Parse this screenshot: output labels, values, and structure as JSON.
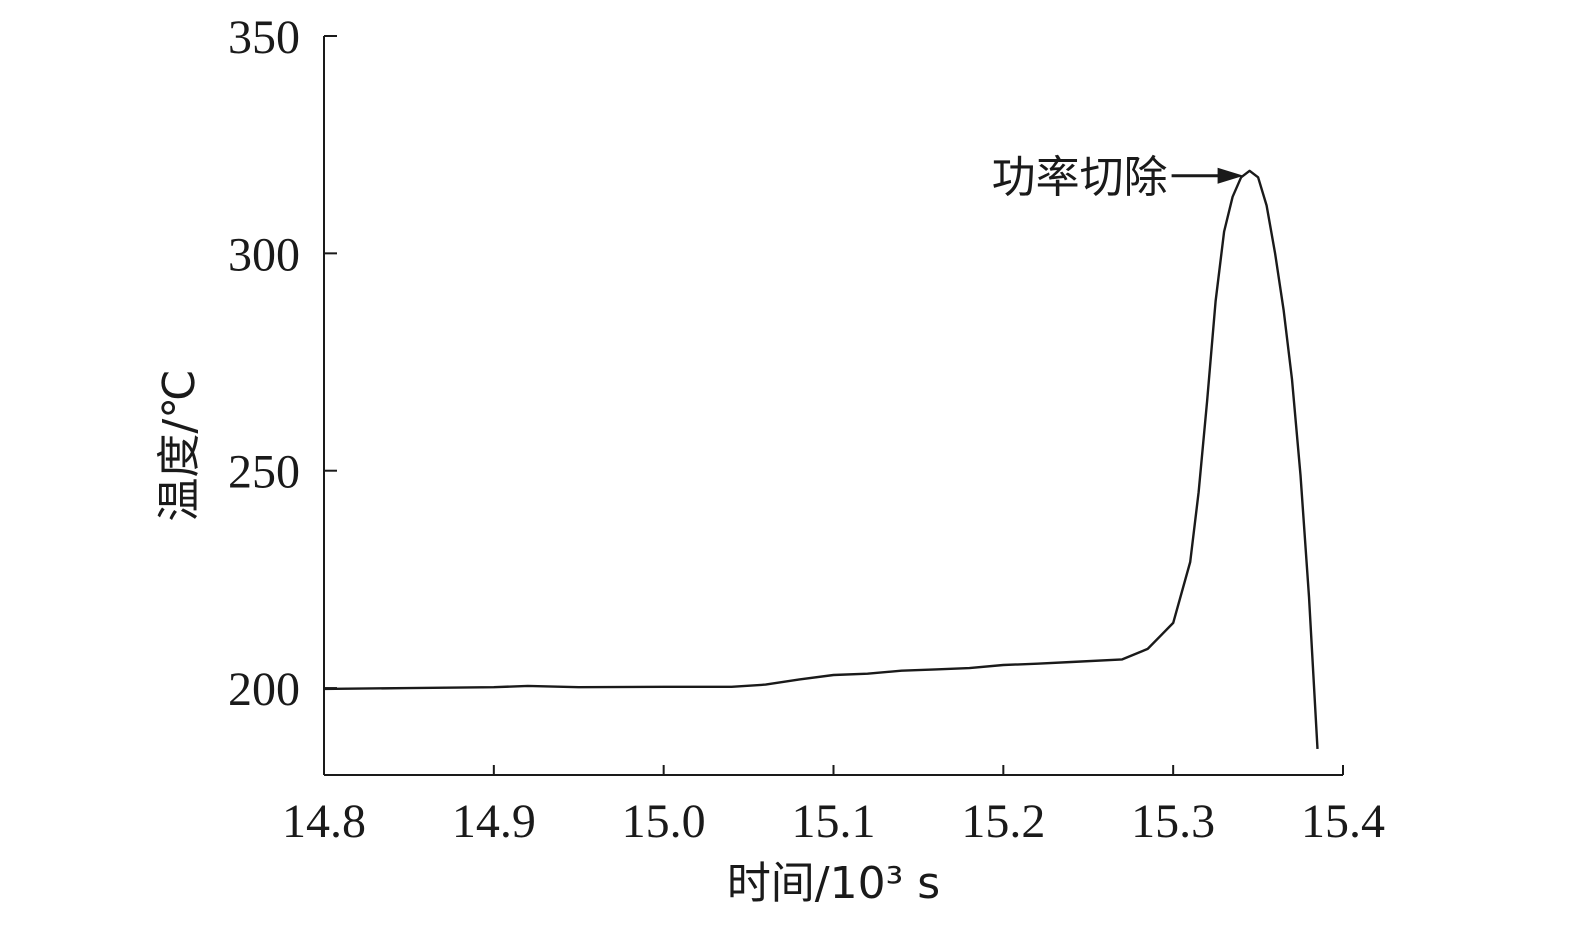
{
  "chart_data": {
    "type": "line",
    "title": "",
    "xlabel": "时间/10³ s",
    "ylabel": "温度/℃",
    "xlim": [
      14.8,
      15.4
    ],
    "ylim": [
      180,
      350
    ],
    "xticks": [
      14.8,
      14.9,
      15.0,
      15.1,
      15.2,
      15.3,
      15.4
    ],
    "xtick_labels": [
      "14.8",
      "14.9",
      "15.0",
      "15.1",
      "15.2",
      "15.3",
      "15.4"
    ],
    "yticks": [
      200,
      250,
      300,
      350
    ],
    "ytick_labels": [
      "200",
      "250",
      "300",
      "350"
    ],
    "grid": false,
    "annotations": [
      {
        "text": "功率切除",
        "x": 15.345,
        "y": 319
      }
    ],
    "series": [
      {
        "x": [
          14.8,
          14.85,
          14.9,
          14.92,
          14.95,
          15.0,
          15.04,
          15.06,
          15.08,
          15.1,
          15.12,
          15.14,
          15.16,
          15.18,
          15.2,
          15.22,
          15.24,
          15.27,
          15.285,
          15.3,
          15.31,
          15.315,
          15.32,
          15.325,
          15.33,
          15.335,
          15.34,
          15.345,
          15.35,
          15.355,
          15.36,
          15.365,
          15.37,
          15.375,
          15.38,
          15.385
        ],
        "y": [
          199.8,
          200.0,
          200.2,
          200.5,
          200.2,
          200.3,
          200.3,
          200.8,
          202.0,
          203.0,
          203.3,
          204.0,
          204.3,
          204.6,
          205.3,
          205.6,
          206.0,
          206.6,
          209.0,
          215.0,
          229.0,
          245.0,
          266.0,
          289.0,
          305.0,
          313.0,
          317.5,
          319.0,
          317.5,
          311.0,
          300.0,
          287.0,
          271.0,
          249.0,
          221.0,
          186.0
        ]
      }
    ]
  }
}
